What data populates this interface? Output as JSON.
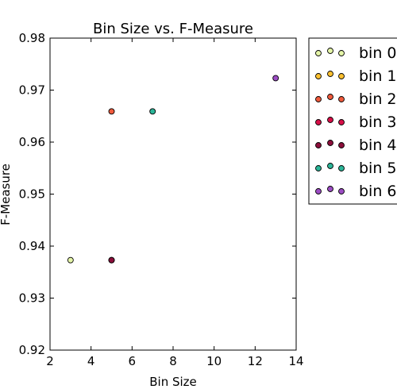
{
  "chart_data": {
    "type": "scatter",
    "title": "Bin Size vs. F-Measure",
    "xlabel": "Bin Size",
    "ylabel": "F-Measure",
    "xlim": [
      2,
      14
    ],
    "ylim": [
      0.92,
      0.98
    ],
    "x_ticks": [
      "2",
      "4",
      "6",
      "8",
      "10",
      "12",
      "14"
    ],
    "y_ticks": [
      "0.92",
      "0.93",
      "0.94",
      "0.95",
      "0.96",
      "0.97",
      "0.98"
    ],
    "grid": false,
    "legend_position": "outside-right",
    "series": [
      {
        "name": "bin 0",
        "color": "#e5f5a8",
        "points": [
          [
            3,
            0.9373
          ]
        ]
      },
      {
        "name": "bin 1",
        "color": "#fdc02f",
        "points": [
          [
            5,
            0.9373
          ]
        ]
      },
      {
        "name": "bin 2",
        "color": "#f05a3c",
        "points": [
          [
            5,
            0.9659
          ]
        ]
      },
      {
        "name": "bin 3",
        "color": "#d80f48",
        "points": [
          [
            5,
            0.9373
          ]
        ]
      },
      {
        "name": "bin 4",
        "color": "#8b0e3a",
        "points": [
          [
            5,
            0.9373
          ]
        ]
      },
      {
        "name": "bin 5",
        "color": "#2bb598",
        "points": [
          [
            7,
            0.9659
          ]
        ]
      },
      {
        "name": "bin 6",
        "color": "#9c4dc4",
        "points": [
          [
            13,
            0.9723
          ]
        ]
      }
    ]
  }
}
